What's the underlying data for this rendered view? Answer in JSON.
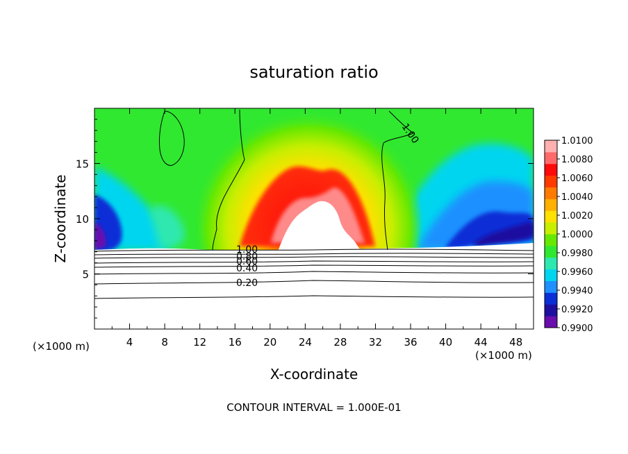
{
  "chart_data": {
    "type": "heatmap",
    "title": "saturation ratio",
    "xlabel": "X-coordinate",
    "ylabel": "Z-coordinate",
    "x_unit_left": "(×1000 m)",
    "x_unit_right": "(×1000 m)",
    "footer": "CONTOUR INTERVAL = 1.000E-01",
    "xlim": [
      0,
      50
    ],
    "ylim": [
      0,
      20
    ],
    "x_ticks": [
      4,
      8,
      12,
      16,
      20,
      24,
      28,
      32,
      36,
      40,
      44,
      48
    ],
    "x_tick_labels": [
      "4",
      "8",
      "12",
      "16",
      "20",
      "24",
      "28",
      "32",
      "36",
      "40",
      "44",
      "48"
    ],
    "y_ticks": [
      5,
      10,
      15
    ],
    "y_tick_labels": [
      "5",
      "10",
      "15"
    ],
    "colorbar": {
      "levels": [
        0.99,
        0.992,
        0.994,
        0.996,
        0.998,
        1.0,
        1.002,
        1.004,
        1.006,
        1.008,
        1.01
      ],
      "labels": [
        "1.0100",
        "1.0080",
        "1.0060",
        "1.0040",
        "1.0020",
        "1.0000",
        "0.9980",
        "0.9960",
        "0.9940",
        "0.9920",
        "0.9900"
      ],
      "colors": [
        "#6a0dad",
        "#1e0fa0",
        "#0a2fd6",
        "#1e90ff",
        "#00d5f0",
        "#2ee8b0",
        "#30e830",
        "#66e800",
        "#c8ee00",
        "#ffe000",
        "#ffb000",
        "#ff7a00",
        "#ff3a00",
        "#ff0a0a",
        "#ff6a6a",
        "#ffb0b0"
      ]
    },
    "contour_labels": [
      "1.00",
      "0.80",
      "0.60",
      "0.40",
      "0.20"
    ],
    "upper_contour_label": "1.00",
    "field_notes": "Saturation field above z≈7: near 1.000 (green) broadly, supersaturated dome (yellow→red) centered x≈24–26 peaking near z≈12–13, subsaturated (blue→purple) near x≈0–4 and x≈36–50 at z≈8–11; white (above range) core at x≈20–30, z≈7–11."
  }
}
